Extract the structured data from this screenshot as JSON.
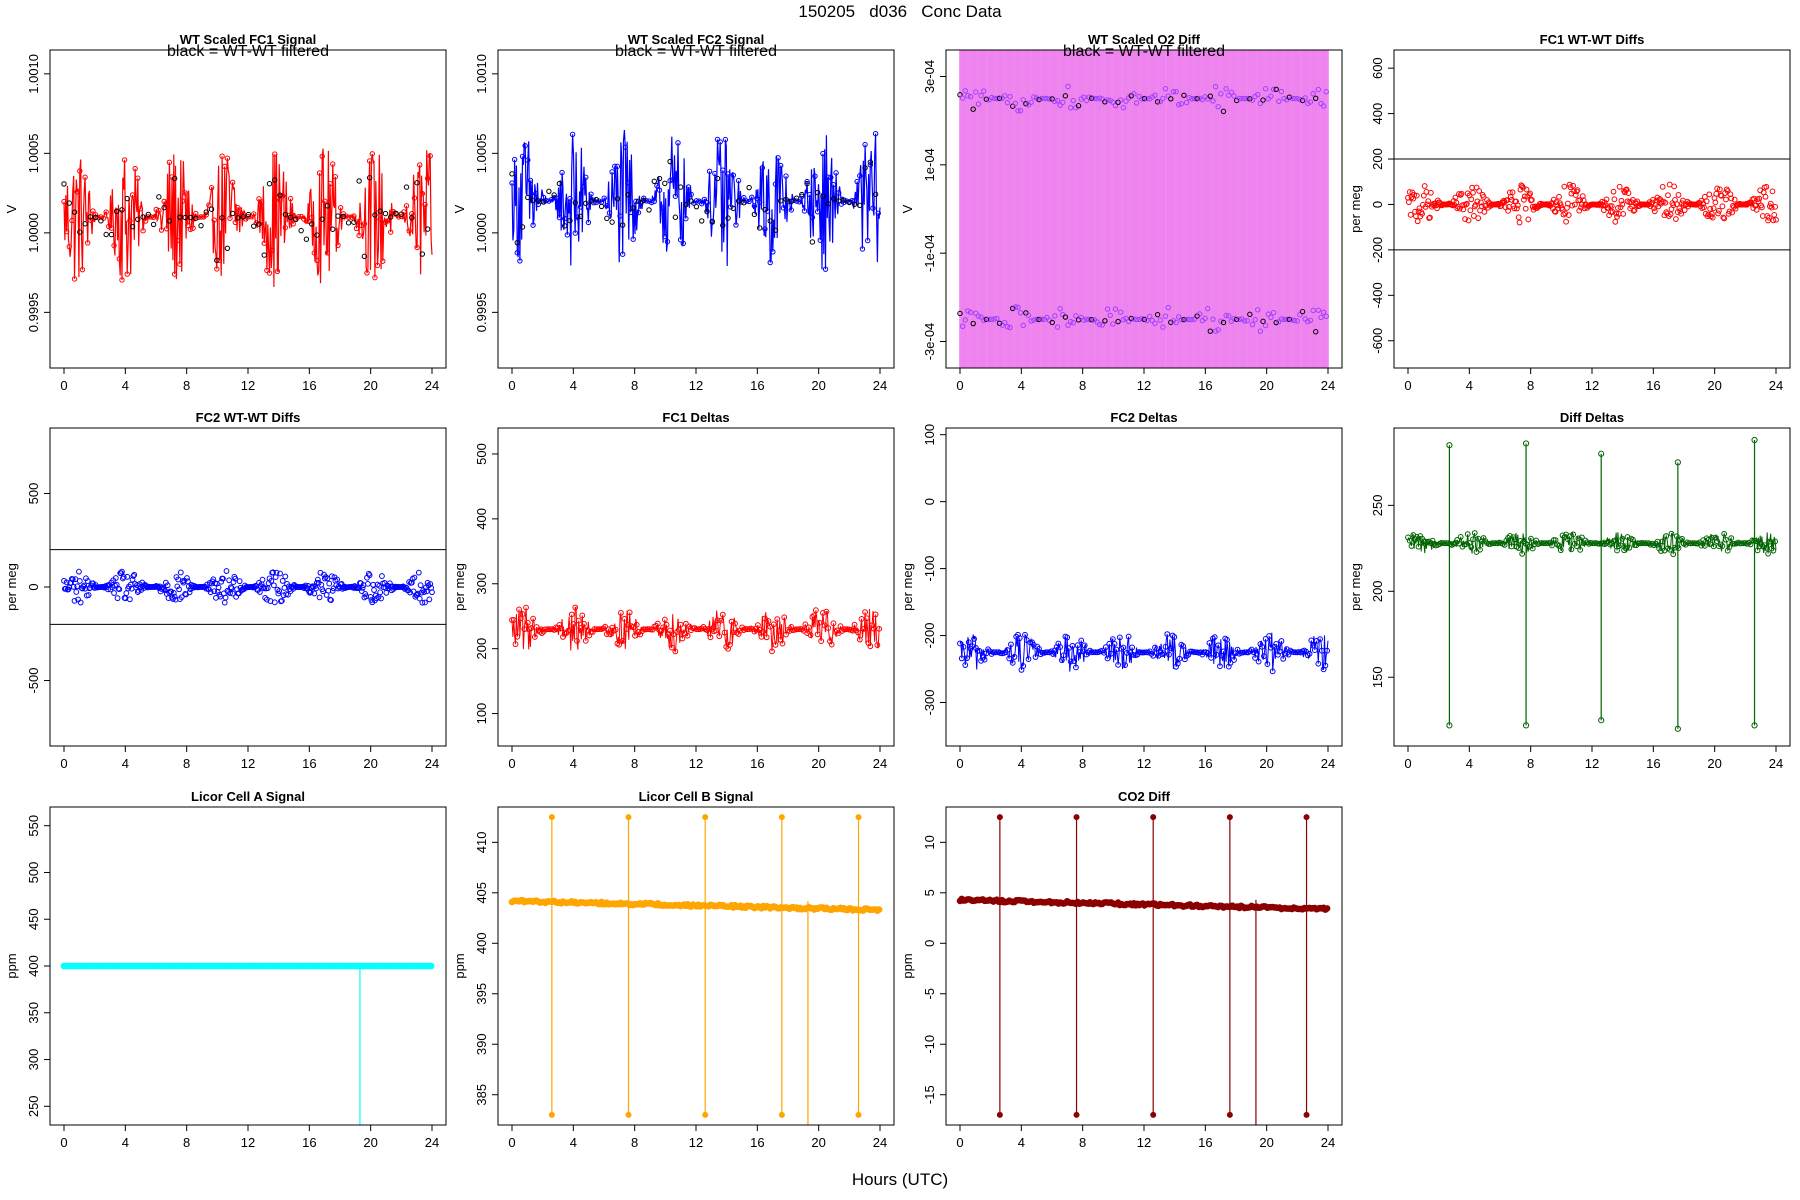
{
  "page": {
    "title": "150205   d036   Conc Data",
    "x_caption": "Hours (UTC)"
  },
  "chart_data": [
    {
      "id": "p1",
      "type": "line",
      "title": "WT Scaled FC1 Signal",
      "subtitle": "black = WT-WT filtered",
      "ylabel": "V",
      "xlabel": "",
      "xlim": [
        0,
        24
      ],
      "ylim": [
        0.99915,
        1.00115
      ],
      "xticks": [
        0,
        4,
        8,
        12,
        16,
        20,
        24
      ],
      "yticks": [
        0.9995,
        1.0,
        1.0005,
        1.001
      ],
      "ytick_labels": [
        "0.9995",
        "1.0000",
        "1.0005",
        "1.0010"
      ],
      "color": "#ff0000",
      "overlay_color": "#000000",
      "style": "dense-noise",
      "series": [
        {
          "name": "FC1 signal",
          "base": 1.0001,
          "spread": 0.00045
        },
        {
          "name": "WT-WT filtered",
          "base": 1.0001,
          "spread": 0.0003
        }
      ]
    },
    {
      "id": "p2",
      "type": "line",
      "title": "WT Scaled FC2 Signal",
      "subtitle": "black = WT-WT filtered",
      "ylabel": "V",
      "xlabel": "",
      "xlim": [
        0,
        24
      ],
      "ylim": [
        0.99915,
        1.00115
      ],
      "xticks": [
        0,
        4,
        8,
        12,
        16,
        20,
        24
      ],
      "yticks": [
        0.9995,
        1.0,
        1.0005,
        1.001
      ],
      "ytick_labels": [
        "0.9995",
        "1.0000",
        "1.0005",
        "1.0010"
      ],
      "color": "#0000ff",
      "overlay_color": "#000000",
      "style": "dense-noise",
      "series": [
        {
          "name": "FC2 signal",
          "base": 1.0002,
          "spread": 0.00045
        },
        {
          "name": "WT-WT filtered",
          "base": 1.0002,
          "spread": 0.0003
        }
      ]
    },
    {
      "id": "p3",
      "type": "line",
      "title": "WT Scaled O2 Diff",
      "subtitle": "black = WT-WT filtered",
      "ylabel": "V",
      "xlabel": "",
      "xlim": [
        0,
        24
      ],
      "ylim": [
        -0.00036,
        0.00036
      ],
      "xticks": [
        0,
        4,
        8,
        12,
        16,
        20,
        24
      ],
      "yticks": [
        -0.0003,
        -0.0001,
        0.0001,
        0.0003
      ],
      "ytick_labels": [
        "-3e-04",
        "-1e-04",
        "1e-04",
        "3e-04"
      ],
      "color": "#ee82ee",
      "overlay_color": "#a040ff",
      "style": "split-bands",
      "series": [
        {
          "name": "upper band",
          "base": 0.00025,
          "spread": 3e-05
        },
        {
          "name": "lower band",
          "base": -0.00025,
          "spread": 3e-05
        }
      ]
    },
    {
      "id": "p4",
      "type": "scatter",
      "title": "FC1 WT-WT Diffs",
      "ylabel": "per meg",
      "xlabel": "",
      "xlim": [
        0,
        24
      ],
      "ylim": [
        -720,
        680
      ],
      "xticks": [
        0,
        4,
        8,
        12,
        16,
        20,
        24
      ],
      "yticks": [
        -600,
        -400,
        -200,
        0,
        200,
        400,
        600
      ],
      "ytick_labels": [
        "-600",
        "-400",
        "-200",
        "0",
        "200",
        "400",
        "600"
      ],
      "hlines": [
        200,
        -200
      ],
      "color": "#ff0000",
      "style": "scatter",
      "series": [
        {
          "name": "FC1 WT-WT diffs",
          "base": 0,
          "spread": 90
        }
      ]
    },
    {
      "id": "p5",
      "type": "scatter",
      "title": "FC2 WT-WT Diffs",
      "ylabel": "per meg",
      "xlabel": "",
      "xlim": [
        0,
        24
      ],
      "ylim": [
        -850,
        850
      ],
      "xticks": [
        0,
        4,
        8,
        12,
        16,
        20,
        24
      ],
      "yticks": [
        -500,
        0,
        500
      ],
      "ytick_labels": [
        "-500",
        "0",
        "500"
      ],
      "hlines": [
        200,
        -200
      ],
      "color": "#0000ff",
      "style": "scatter",
      "series": [
        {
          "name": "FC2 WT-WT diffs",
          "base": 0,
          "spread": 90
        }
      ]
    },
    {
      "id": "p6",
      "type": "line",
      "title": "FC1 Deltas",
      "ylabel": "per meg",
      "xlabel": "",
      "xlim": [
        0,
        24
      ],
      "ylim": [
        50,
        540
      ],
      "xticks": [
        0,
        4,
        8,
        12,
        16,
        20,
        24
      ],
      "yticks": [
        100,
        200,
        300,
        400,
        500
      ],
      "ytick_labels": [
        "100",
        "200",
        "300",
        "400",
        "500"
      ],
      "color": "#ff0000",
      "style": "line-points",
      "series": [
        {
          "name": "FC1 deltas",
          "base": 230,
          "spread": 35
        }
      ]
    },
    {
      "id": "p7",
      "type": "line",
      "title": "FC2 Deltas",
      "ylabel": "per meg",
      "xlabel": "",
      "xlim": [
        0,
        24
      ],
      "ylim": [
        -365,
        110
      ],
      "xticks": [
        0,
        4,
        8,
        12,
        16,
        20,
        24
      ],
      "yticks": [
        -300,
        -200,
        -100,
        0,
        100
      ],
      "ytick_labels": [
        "-300",
        "-200",
        "-100",
        "0",
        "100"
      ],
      "color": "#0000ff",
      "style": "line-points",
      "series": [
        {
          "name": "FC2 deltas",
          "base": -225,
          "spread": 30
        }
      ]
    },
    {
      "id": "p8",
      "type": "line",
      "title": "Diff Deltas",
      "ylabel": "per meg",
      "xlabel": "",
      "xlim": [
        0,
        24
      ],
      "ylim": [
        110,
        295
      ],
      "xticks": [
        0,
        4,
        8,
        12,
        16,
        20,
        24
      ],
      "yticks": [
        150,
        200,
        250
      ],
      "ytick_labels": [
        "150",
        "200",
        "250"
      ],
      "color": "#006400",
      "style": "line-points-spikes",
      "series": [
        {
          "name": "Diff deltas",
          "base": 228,
          "spread": 7
        }
      ],
      "spikes": [
        {
          "x": 2.7,
          "high": 285,
          "low": 122
        },
        {
          "x": 7.7,
          "high": 286,
          "low": 122
        },
        {
          "x": 12.6,
          "high": 280,
          "low": 125
        },
        {
          "x": 17.6,
          "high": 275,
          "low": 120
        },
        {
          "x": 22.6,
          "high": 288,
          "low": 122
        }
      ]
    },
    {
      "id": "p9",
      "type": "line",
      "title": "Licor Cell A Signal",
      "ylabel": "ppm",
      "xlabel": "",
      "xlim": [
        0,
        24
      ],
      "ylim": [
        230,
        570
      ],
      "xticks": [
        0,
        4,
        8,
        12,
        16,
        20,
        24
      ],
      "yticks": [
        250,
        300,
        350,
        400,
        450,
        500,
        550
      ],
      "ytick_labels": [
        "250",
        "300",
        "350",
        "400",
        "450",
        "500",
        "550"
      ],
      "color": "#00ffff",
      "style": "flat",
      "series": [
        {
          "name": "Cell A",
          "base": 400,
          "spread": 0
        }
      ],
      "drops": [
        {
          "x": 19.3,
          "low": 230
        }
      ]
    },
    {
      "id": "p10",
      "type": "line",
      "title": "Licor Cell B Signal",
      "ylabel": "ppm",
      "xlabel": "",
      "xlim": [
        0,
        24
      ],
      "ylim": [
        382,
        413.5
      ],
      "xticks": [
        0,
        4,
        8,
        12,
        16,
        20,
        24
      ],
      "yticks": [
        385,
        390,
        395,
        400,
        405,
        410
      ],
      "ytick_labels": [
        "385",
        "390",
        "395",
        "400",
        "405",
        "410"
      ],
      "color": "#ffa500",
      "style": "flat-spikes",
      "series": [
        {
          "name": "Cell B",
          "start": 404.2,
          "end": 403.3
        }
      ],
      "spikes": [
        {
          "x": 2.6,
          "high": 412.5,
          "low": 383
        },
        {
          "x": 7.6,
          "high": 412.5,
          "low": 383
        },
        {
          "x": 12.6,
          "high": 412.5,
          "low": 383
        },
        {
          "x": 17.6,
          "high": 412.5,
          "low": 383
        },
        {
          "x": 22.6,
          "high": 412.5,
          "low": 383
        }
      ],
      "drops": [
        {
          "x": 19.3,
          "low": 382
        }
      ]
    },
    {
      "id": "p11",
      "type": "line",
      "title": "CO2 Diff",
      "ylabel": "ppm",
      "xlabel": "",
      "xlim": [
        0,
        24
      ],
      "ylim": [
        -18,
        13.5
      ],
      "xticks": [
        0,
        4,
        8,
        12,
        16,
        20,
        24
      ],
      "yticks": [
        -15,
        -10,
        -5,
        0,
        5,
        10
      ],
      "ytick_labels": [
        "-15",
        "-10",
        "-5",
        "0",
        "5",
        "10"
      ],
      "color": "#8b0000",
      "style": "flat-spikes",
      "series": [
        {
          "name": "CO2 diff",
          "start": 4.3,
          "end": 3.4
        }
      ],
      "spikes": [
        {
          "x": 2.6,
          "high": 12.5,
          "low": -17
        },
        {
          "x": 7.6,
          "high": 12.5,
          "low": -17
        },
        {
          "x": 12.6,
          "high": 12.5,
          "low": -17
        },
        {
          "x": 17.6,
          "high": 12.5,
          "low": -17
        },
        {
          "x": 22.6,
          "high": 12.5,
          "low": -17
        }
      ],
      "drops": [
        {
          "x": 19.3,
          "low": -18
        }
      ]
    }
  ]
}
